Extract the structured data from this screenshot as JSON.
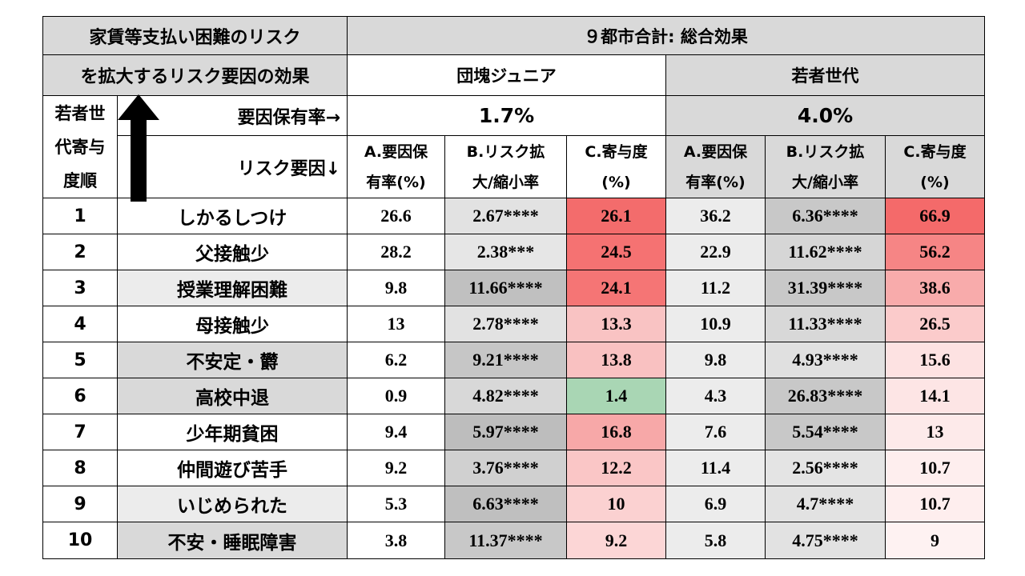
{
  "title_line1": "家賃等支払い困難のリスク",
  "title_line2": "を拡大するリスク要因の効果",
  "top_header": "９都市合計: 総合効果",
  "group_dankai": "団塊ジュニア",
  "group_wakamono": "若者世代",
  "rank_header_lines": [
    "若者世",
    "代寄与",
    "度順"
  ],
  "prevalence_label": "要因保有率→",
  "risk_label": "リスク要因↓",
  "prevalence_dankai": "1.7%",
  "prevalence_wakamono": "4.0%",
  "col_headers": [
    [
      "A.要因保",
      "有率(%)"
    ],
    [
      "B.リスク拡",
      "大/縮小率"
    ],
    [
      "C.寄与度",
      "(%)"
    ],
    [
      "A.要因保",
      "有率(%)"
    ],
    [
      "B.リスク拡",
      "大/縮小率"
    ],
    [
      "C.寄与度",
      "(%)"
    ]
  ],
  "icons": {
    "up_arrow": "arrow-up-icon"
  },
  "colors": {
    "gray": "#d9d9d9",
    "light_gray": "#ececec",
    "dark_gray": "#c3c3c3",
    "green": "#a9d6b4"
  },
  "rows": [
    {
      "rank": "1",
      "factor": "しかるしつけ",
      "factor_bg": "#ffffff",
      "d_a": "26.6",
      "d_b": "2.67****",
      "d_b_bg": "#e2e2e2",
      "d_c": "26.1",
      "d_c_bg": "#f36c6c",
      "w_a": "36.2",
      "w_b": "6.36****",
      "w_b_bg": "#c8c8c8",
      "w_c": "66.9",
      "w_c_bg": "#f46a6a"
    },
    {
      "rank": "2",
      "factor": "父接触少",
      "factor_bg": "#ffffff",
      "d_a": "28.2",
      "d_b": "2.38***",
      "d_b_bg": "#e6e6e6",
      "d_c": "24.5",
      "d_c_bg": "#f57272",
      "w_a": "22.9",
      "w_b": "11.62****",
      "w_b_bg": "#d6d6d6",
      "w_c": "56.2",
      "w_c_bg": "#f68585"
    },
    {
      "rank": "3",
      "factor": "授業理解困難",
      "factor_bg": "#ececec",
      "d_a": "9.8",
      "d_b": "11.66****",
      "d_b_bg": "#c0c0c0",
      "d_c": "24.1",
      "d_c_bg": "#f57575",
      "w_a": "11.2",
      "w_b": "31.39****",
      "w_b_bg": "#c8c8c8",
      "w_c": "38.6",
      "w_c_bg": "#f8abab"
    },
    {
      "rank": "4",
      "factor": "母接触少",
      "factor_bg": "#ffffff",
      "d_a": "13",
      "d_b": "2.78****",
      "d_b_bg": "#e2e2e2",
      "d_c": "13.3",
      "d_c_bg": "#f9c3c3",
      "w_a": "10.9",
      "w_b": "11.33****",
      "w_b_bg": "#d8d8d8",
      "w_c": "26.5",
      "w_c_bg": "#fbcbcb"
    },
    {
      "rank": "5",
      "factor": "不安定・欝",
      "factor_bg": "#d9d9d9",
      "d_a": "6.2",
      "d_b": "9.21****",
      "d_b_bg": "#c6c6c6",
      "d_c": "13.8",
      "d_c_bg": "#f9c1c1",
      "w_a": "9.8",
      "w_b": "4.93****",
      "w_b_bg": "#e0e0e0",
      "w_c": "15.6",
      "w_c_bg": "#fde2e2"
    },
    {
      "rank": "6",
      "factor": "高校中退",
      "factor_bg": "#d9d9d9",
      "d_a": "0.9",
      "d_b": "4.82****",
      "d_b_bg": "#d8d8d8",
      "d_c": "1.4",
      "d_c_bg": "#a9d6b4",
      "w_a": "4.3",
      "w_b": "26.83****",
      "w_b_bg": "#c8c8c8",
      "w_c": "14.1",
      "w_c_bg": "#fde5e5"
    },
    {
      "rank": "7",
      "factor": "少年期貧困",
      "factor_bg": "#ffffff",
      "d_a": "9.4",
      "d_b": "5.97****",
      "d_b_bg": "#bdbdbd",
      "d_c": "16.8",
      "d_c_bg": "#f7a8a8",
      "w_a": "7.6",
      "w_b": "5.54****",
      "w_b_bg": "#c8c8c8",
      "w_c": "13",
      "w_c_bg": "#fdeaea"
    },
    {
      "rank": "8",
      "factor": "仲間遊び苦手",
      "factor_bg": "#ffffff",
      "d_a": "9.2",
      "d_b": "3.76****",
      "d_b_bg": "#d0d0d0",
      "d_c": "12.2",
      "d_c_bg": "#fac6c6",
      "w_a": "11.4",
      "w_b": "2.56****",
      "w_b_bg": "#e4e4e4",
      "w_c": "10.7",
      "w_c_bg": "#feeeee"
    },
    {
      "rank": "9",
      "factor": "いじめられた",
      "factor_bg": "#ececec",
      "d_a": "5.3",
      "d_b": "6.63****",
      "d_b_bg": "#bfbfbf",
      "d_c": "10",
      "d_c_bg": "#fbd1d1",
      "w_a": "6.9",
      "w_b": "4.7****",
      "w_b_bg": "#e2e2e2",
      "w_c": "10.7",
      "w_c_bg": "#feeeee"
    },
    {
      "rank": "10",
      "factor": "不安・睡眠障害",
      "factor_bg": "#d9d9d9",
      "d_a": "3.8",
      "d_b": "11.37****",
      "d_b_bg": "#c8c8c8",
      "d_c": "9.2",
      "d_c_bg": "#fcd6d6",
      "w_a": "5.8",
      "w_b": "4.75****",
      "w_b_bg": "#e2e2e2",
      "w_c": "9",
      "w_c_bg": "#fef2f2"
    }
  ]
}
